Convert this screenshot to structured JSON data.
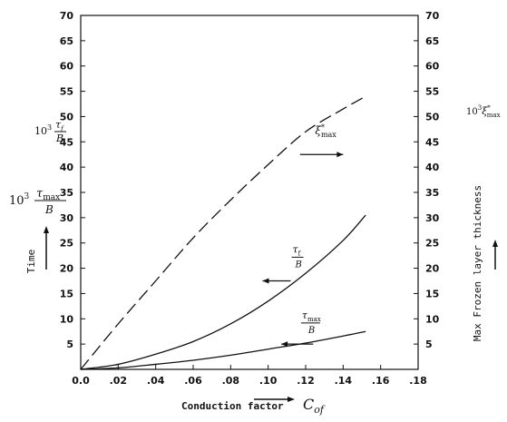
{
  "chart_data": {
    "type": "line",
    "xlim": [
      0,
      0.18
    ],
    "ylim": [
      0,
      70
    ],
    "x_ticks": [
      "0.0",
      ".02",
      ".04",
      ".06",
      ".08",
      ".10",
      ".12",
      ".14",
      ".16",
      ".18"
    ],
    "y_ticks": [
      "5",
      "10",
      "15",
      "20",
      "25",
      "30",
      "35",
      "40",
      "45",
      "50",
      "55",
      "60",
      "65",
      "70"
    ],
    "xlabel": "Conduction factor",
    "xlabel_symbol": "C",
    "xlabel_symbol_sub": "of",
    "ylabel_left": "Time",
    "ylabel_right": "Max Frozen layer thickness",
    "left_label_1": {
      "prefix": "10",
      "sup": "3",
      "num": "τ",
      "num_sub": "f",
      "den": "B"
    },
    "left_label_2": {
      "prefix": "10",
      "sup": "3",
      "num": "τ",
      "num_sub": "max",
      "den": "B"
    },
    "right_label": {
      "prefix": "10",
      "sup": "3",
      "sym": "ξ",
      "sym_sup": "*",
      "sym_sub": "max"
    },
    "series": [
      {
        "label": "ξ*max",
        "style": "dashed",
        "x": [
          0,
          0.02,
          0.04,
          0.06,
          0.08,
          0.1,
          0.12,
          0.14,
          0.152
        ],
        "y": [
          0,
          9,
          17.5,
          26,
          33.5,
          40.5,
          47,
          51.5,
          54
        ]
      },
      {
        "label": "τf/B",
        "style": "solid",
        "x": [
          0,
          0.02,
          0.04,
          0.06,
          0.08,
          0.1,
          0.12,
          0.14,
          0.152
        ],
        "y": [
          0,
          1,
          3,
          5.5,
          9,
          13.5,
          19,
          25.5,
          30.5
        ]
      },
      {
        "label": "τmax/B",
        "style": "solid",
        "x": [
          0,
          0.02,
          0.04,
          0.06,
          0.08,
          0.1,
          0.12,
          0.14,
          0.152
        ],
        "y": [
          0,
          0.3,
          1,
          1.8,
          2.8,
          4,
          5.2,
          6.6,
          7.5
        ]
      }
    ],
    "annotations": [
      {
        "series": 0,
        "sym": "ξ",
        "sup": "*",
        "sub": "max",
        "at": [
          0.125,
          46.5
        ],
        "arrow_to": [
          0.14,
          42.5
        ],
        "arrow_from": [
          0.117,
          42.5
        ]
      },
      {
        "series": 1,
        "num": "τ",
        "num_sub": "f",
        "den": "B",
        "at": [
          0.113,
          22
        ],
        "arrow_to": [
          0.097,
          17.5
        ],
        "arrow_from": [
          0.112,
          17.5
        ]
      },
      {
        "series": 2,
        "num": "τ",
        "num_sub": "max",
        "den": "B",
        "at": [
          0.118,
          9
        ],
        "arrow_to": [
          0.107,
          5
        ],
        "arrow_from": [
          0.124,
          5
        ]
      }
    ]
  }
}
